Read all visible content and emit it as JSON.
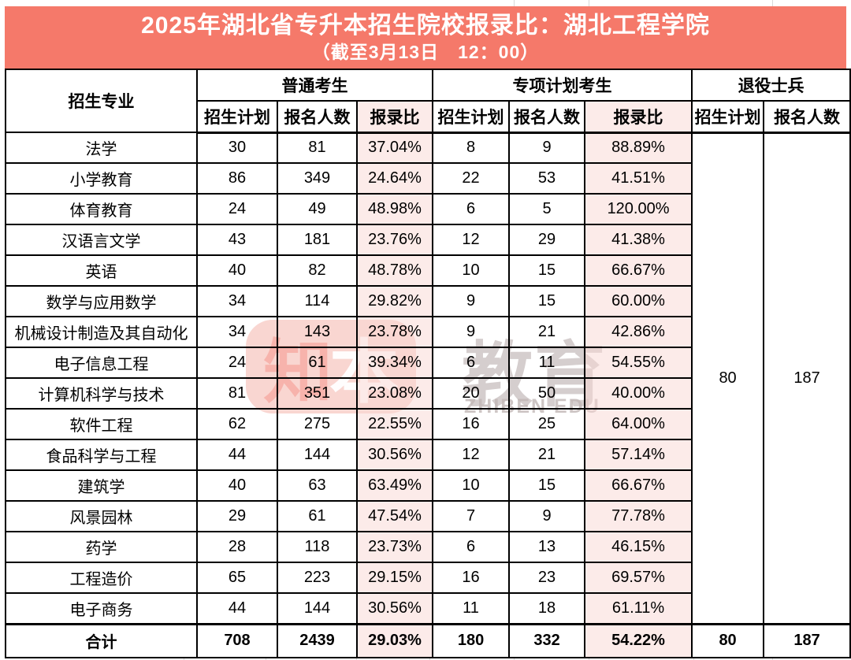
{
  "banner": {
    "title": "2025年湖北省专升本招生院校报录比：湖北工程学院",
    "subtitle": "（截至3月13日　12：00）",
    "bg_color": "#f5796a",
    "text_color": "#ffffff"
  },
  "table": {
    "major_header": "招生专业",
    "group_headers": {
      "general": "普通考生",
      "special": "专项计划考生",
      "veteran": "退役士兵"
    },
    "sub_headers": {
      "plan": "招生计划",
      "applicants": "报名人数",
      "ratio": "报录比"
    },
    "highlight_color": "#fcebe9",
    "rows": [
      {
        "major": "法学",
        "general": [
          "30",
          "81",
          "37.04%"
        ],
        "special": [
          "8",
          "9",
          "88.89%"
        ]
      },
      {
        "major": "小学教育",
        "general": [
          "86",
          "349",
          "24.64%"
        ],
        "special": [
          "22",
          "53",
          "41.51%"
        ]
      },
      {
        "major": "体育教育",
        "general": [
          "24",
          "49",
          "48.98%"
        ],
        "special": [
          "6",
          "5",
          "120.00%"
        ]
      },
      {
        "major": "汉语言文学",
        "general": [
          "43",
          "181",
          "23.76%"
        ],
        "special": [
          "12",
          "29",
          "41.38%"
        ]
      },
      {
        "major": "英语",
        "general": [
          "40",
          "82",
          "48.78%"
        ],
        "special": [
          "10",
          "15",
          "66.67%"
        ]
      },
      {
        "major": "数学与应用数学",
        "general": [
          "34",
          "114",
          "29.82%"
        ],
        "special": [
          "9",
          "15",
          "60.00%"
        ]
      },
      {
        "major": "机械设计制造及其自动化",
        "general": [
          "34",
          "143",
          "23.78%"
        ],
        "special": [
          "9",
          "21",
          "42.86%"
        ]
      },
      {
        "major": "电子信息工程",
        "general": [
          "24",
          "61",
          "39.34%"
        ],
        "special": [
          "6",
          "11",
          "54.55%"
        ]
      },
      {
        "major": "计算机科学与技术",
        "general": [
          "81",
          "351",
          "23.08%"
        ],
        "special": [
          "20",
          "50",
          "40.00%"
        ]
      },
      {
        "major": "软件工程",
        "general": [
          "62",
          "275",
          "22.55%"
        ],
        "special": [
          "16",
          "25",
          "64.00%"
        ]
      },
      {
        "major": "食品科学与工程",
        "general": [
          "44",
          "144",
          "30.56%"
        ],
        "special": [
          "12",
          "21",
          "57.14%"
        ]
      },
      {
        "major": "建筑学",
        "general": [
          "40",
          "63",
          "63.49%"
        ],
        "special": [
          "10",
          "15",
          "66.67%"
        ]
      },
      {
        "major": "风景园林",
        "general": [
          "29",
          "61",
          "47.54%"
        ],
        "special": [
          "7",
          "9",
          "77.78%"
        ]
      },
      {
        "major": "药学",
        "general": [
          "28",
          "118",
          "23.73%"
        ],
        "special": [
          "6",
          "13",
          "46.15%"
        ]
      },
      {
        "major": "工程造价",
        "general": [
          "65",
          "223",
          "29.15%"
        ],
        "special": [
          "16",
          "23",
          "69.57%"
        ]
      },
      {
        "major": "电子商务",
        "general": [
          "44",
          "144",
          "30.56%"
        ],
        "special": [
          "11",
          "18",
          "61.11%"
        ]
      }
    ],
    "veteran_merged": {
      "plan": "80",
      "applicants": "187"
    },
    "total": {
      "label": "合计",
      "general": [
        "708",
        "2439",
        "29.03%"
      ],
      "special": [
        "180",
        "332",
        "54.22%"
      ],
      "veteran": [
        "80",
        "187"
      ]
    }
  },
  "watermark": {
    "logo_char1": "知",
    "logo_char2": "本",
    "brand_text": "教育",
    "brand_sub": "ZHIBEN EDU"
  }
}
